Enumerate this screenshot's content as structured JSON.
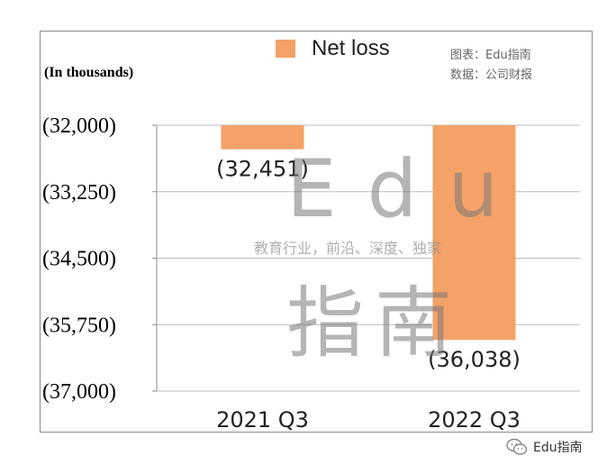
{
  "chart_data": {
    "type": "bar",
    "categories": [
      "2021 Q3",
      "2022 Q3"
    ],
    "series": [
      {
        "name": "Net loss",
        "values": [
          -32451,
          -36038
        ]
      }
    ],
    "data_labels": [
      "(32,451)",
      "(36,038)"
    ],
    "y_ticks": [
      -32000,
      -33250,
      -34500,
      -35750,
      -37000
    ],
    "y_tick_labels": [
      "(32,000)",
      "(33,250)",
      "(34,500)",
      "(35,750)",
      "(37,000)"
    ],
    "ylim": [
      -37000,
      -32000
    ],
    "unit_label": "(In thousands)",
    "grid": true,
    "legend_position": "top"
  },
  "source": {
    "chart_line": "图表：Edu指南",
    "data_line": "数据：公司财报"
  },
  "watermark": {
    "latin": "Edu",
    "tagline": "教育行业，前沿、深度、独家",
    "chinese": "指南"
  },
  "footer": {
    "brand": "Edu指南"
  },
  "colors": {
    "bar": "#f4a267",
    "grid": "#bdbdbd"
  },
  "icons": {
    "footer": "wechat-icon"
  }
}
